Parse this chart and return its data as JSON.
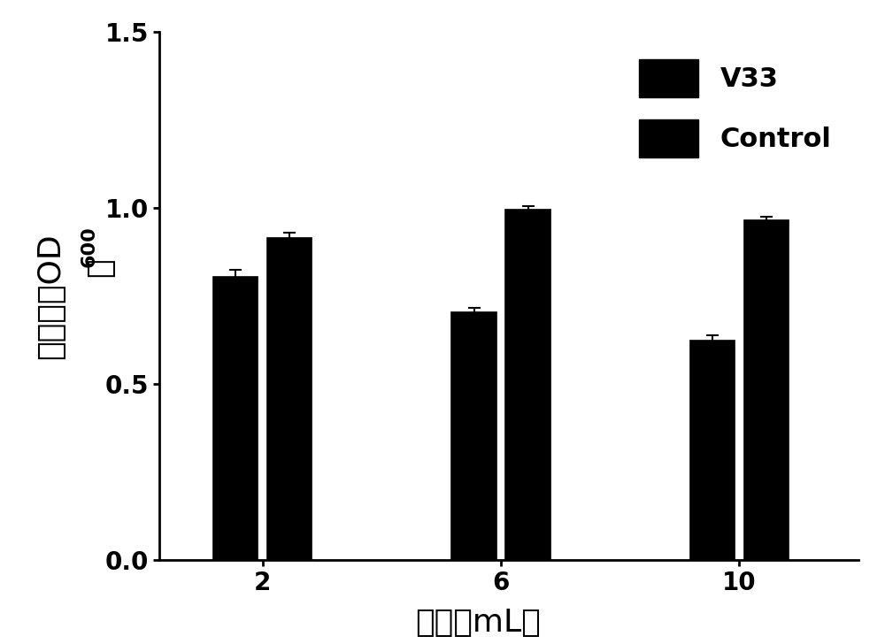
{
  "categories": [
    "2",
    "6",
    "10"
  ],
  "v33_values": [
    0.805,
    0.705,
    0.625
  ],
  "control_values": [
    0.915,
    0.995,
    0.965
  ],
  "v33_errors": [
    0.02,
    0.013,
    0.013
  ],
  "control_errors": [
    0.015,
    0.01,
    0.012
  ],
  "xlabel_cn": "体积（",
  "xlabel_ml": "mL",
  "xlabel_end": "）",
  "ylabel_cn": "吸光值（OD",
  "ylabel_sub": "600",
  "ylabel_end": "）",
  "ylim": [
    0.0,
    1.5
  ],
  "yticks": [
    0.0,
    0.5,
    1.0,
    1.5
  ],
  "legend_v33": "V33",
  "legend_control": "Control",
  "bar_width": 0.28,
  "group_positions": [
    1.0,
    2.5,
    4.0
  ],
  "background_color": "#ffffff",
  "label_fontsize": 22,
  "tick_fontsize": 20,
  "legend_fontsize": 22,
  "cn_fontsize": 26
}
